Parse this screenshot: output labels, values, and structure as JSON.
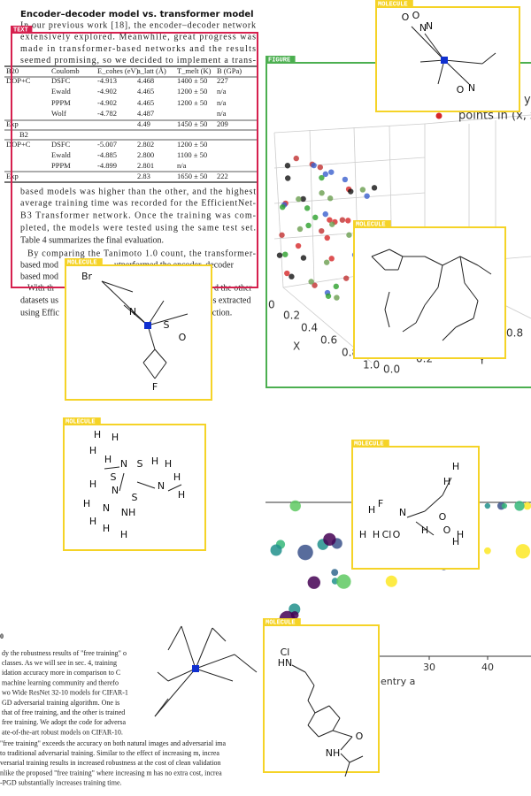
{
  "text_block": {
    "title": "Encoder–decoder model vs. transformer model",
    "lines_before": [
      "In our previous work [18], the encoder–decoder network",
      "extensively explored. Meanwhile, great progress was",
      "made in transformer-based networks and the results",
      "seemed promising, so we decided to implement a trans-"
    ],
    "table": {
      "header": [
        "B20",
        "Coulomb",
        "E_cohes (eV)",
        "a_latt (Å)",
        "T_melt (K)",
        "B (GPa)"
      ],
      "section": "B2",
      "rows_b20": [
        [
          "DOP+C",
          "DSFC",
          "-4.913",
          "4.468",
          "1400 ± 50",
          "227"
        ],
        [
          "Ewald",
          "-4.902",
          "4.465",
          "1200 ± 50",
          "n/a"
        ],
        [
          "PPPM",
          "-4.902",
          "4.465",
          "1200 ± 50",
          "n/a"
        ],
        [
          "Wolf",
          "-4.782",
          "4.487",
          "n/a"
        ],
        [
          "Exp",
          "4.49",
          "1450 ± 50",
          "209"
        ]
      ],
      "rows_b2": [
        [
          "DOP+C",
          "DSFC",
          "-5.007",
          "2.802",
          "1200 ± 50"
        ],
        [
          "Ewald",
          "-4.885",
          "2.800",
          "1100 ± 50"
        ],
        [
          "PPPM",
          "-4.899",
          "2.801",
          "n/a"
        ],
        [
          "Exp",
          "2.83",
          "1650 ± 50",
          "222"
        ]
      ]
    },
    "lines_after": [
      "based models was higher than the other, and the highest",
      "average training time was recorded for the EfficientNet-",
      "B3 Transformer network. Once the training was com-",
      "pleted, the models were tested using the same test set.",
      "Table 4 summarizes the final evaluation.",
      "By comparing the Tanimoto 1.0 count, the transformer-"
    ],
    "fragments": [
      "based mod",
      "utperformed the encoder–decoder",
      "based mod",
      "With th",
      "d the other",
      "datasets us",
      "es extracted",
      "using Effic",
      "raction."
    ]
  },
  "region_labels": {
    "text": "TEXT",
    "figure": "FIGURE",
    "molecule": "MOLECULE"
  },
  "figure_3d": {
    "legend": "points in (x, z",
    "legend_y": "y",
    "x_label": "X",
    "y_label": "Y",
    "x_ticks": [
      "0",
      "0.2",
      "0.4",
      "0.6",
      "0.8",
      "1.0"
    ],
    "y_ticks": [
      "0.0",
      "0.2",
      "0.4"
    ],
    "z_tick": "0.8"
  },
  "scatter": {
    "x_label": "entry a",
    "x_ticks": [
      "30",
      "40"
    ]
  },
  "molecules": [
    {
      "atoms": [
        "O",
        "O",
        "N",
        "N",
        "O",
        "N"
      ]
    },
    {
      "atoms": [
        "Br",
        "N",
        "S",
        "O",
        "F"
      ]
    },
    {
      "atoms": [
        "H",
        "H",
        "H",
        "H",
        "N",
        "S",
        "H",
        "H",
        "S",
        "H",
        "N",
        "S",
        "N",
        "H",
        "H",
        "H",
        "N",
        "NH",
        "H",
        "H",
        "H"
      ]
    },
    {
      "atoms": [
        "H",
        "H",
        "F",
        "H",
        "N",
        "Cl",
        "O",
        "H",
        "H",
        "O",
        "H",
        "H",
        "O",
        "H"
      ]
    },
    {
      "atoms": [
        "Cl",
        "HN",
        "O",
        "NH"
      ]
    }
  ],
  "paper_text": {
    "number": "0",
    "lines": [
      "dy the robustness results of \"free training\" o",
      "classes. As we will see in sec. 4, training",
      "idation accuracy more in comparison to C",
      "machine learning community and therefo",
      "wo Wide ResNet 32-10 models for CIFAR-1",
      "GD adversarial training algorithm. One is",
      "that of free training, and the other is trained",
      "free training. We adopt the code for adversa",
      "ate-of-the-art robust models on CIFAR-10.",
      "\"free training\" exceeds the accuracy on both natural images and adversarial ima",
      "to traditional adversarial training. Similar to the effect of increasing m, increa",
      "versarial training results in increased robustness at the cost of clean validation",
      "nlike the proposed \"free training\" where increasing m has no extra cost, increa",
      "-PGD substantially increases training time."
    ]
  }
}
